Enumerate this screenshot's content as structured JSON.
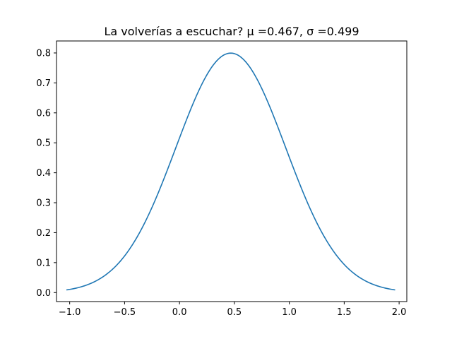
{
  "chart_data": {
    "type": "line",
    "title": "La volverías a escuchar? μ =0.467, σ =0.499",
    "xlabel": "",
    "ylabel": "",
    "xlim": [
      -1.12,
      2.07
    ],
    "ylim": [
      -0.03,
      0.84
    ],
    "grid": false,
    "series": [
      {
        "color": "#1f77b4",
        "mu": 0.467,
        "sigma": 0.499,
        "x_range": [
          -1.03,
          1.964
        ]
      }
    ],
    "xticks": [
      {
        "value": -1.0,
        "label": "−1.0"
      },
      {
        "value": -0.5,
        "label": "−0.5"
      },
      {
        "value": 0.0,
        "label": "0.0"
      },
      {
        "value": 0.5,
        "label": "0.5"
      },
      {
        "value": 1.0,
        "label": "1.0"
      },
      {
        "value": 1.5,
        "label": "1.5"
      },
      {
        "value": 2.0,
        "label": "2.0"
      }
    ],
    "yticks": [
      {
        "value": 0.0,
        "label": "0.0"
      },
      {
        "value": 0.1,
        "label": "0.1"
      },
      {
        "value": 0.2,
        "label": "0.2"
      },
      {
        "value": 0.3,
        "label": "0.3"
      },
      {
        "value": 0.4,
        "label": "0.4"
      },
      {
        "value": 0.5,
        "label": "0.5"
      },
      {
        "value": 0.6,
        "label": "0.6"
      },
      {
        "value": 0.7,
        "label": "0.7"
      },
      {
        "value": 0.8,
        "label": "0.8"
      }
    ]
  }
}
